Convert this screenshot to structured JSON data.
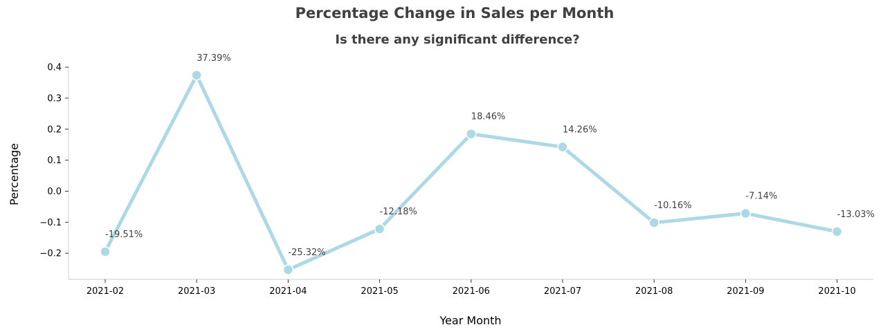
{
  "chart_data": {
    "type": "line",
    "title": "Percentage Change in Sales per Month",
    "subtitle": "Is there any significant difference?",
    "xlabel": "Year Month",
    "ylabel": "Percentage",
    "categories": [
      "2021-02",
      "2021-03",
      "2021-04",
      "2021-05",
      "2021-06",
      "2021-07",
      "2021-08",
      "2021-09",
      "2021-10"
    ],
    "values": [
      -0.1951,
      0.3739,
      -0.2532,
      -0.1218,
      0.1846,
      0.1426,
      -0.1016,
      -0.0714,
      -0.1303
    ],
    "data_labels": [
      "-19.51%",
      "37.39%",
      "-25.32%",
      "-12.18%",
      "18.46%",
      "14.26%",
      "-10.16%",
      "-7.14%",
      "-13.03%"
    ],
    "yticks": [
      0.4,
      0.3,
      0.2,
      0.1,
      0.0,
      -0.1,
      -0.2
    ],
    "ytick_labels": [
      "0.4",
      "0.3",
      "0.2",
      "0.1",
      "0.0",
      "−0.1",
      "−0.2"
    ],
    "ylim": [
      -0.286,
      0.41
    ],
    "grid": false,
    "line_color": "#add8e6",
    "marker_color": "#add8e6"
  }
}
